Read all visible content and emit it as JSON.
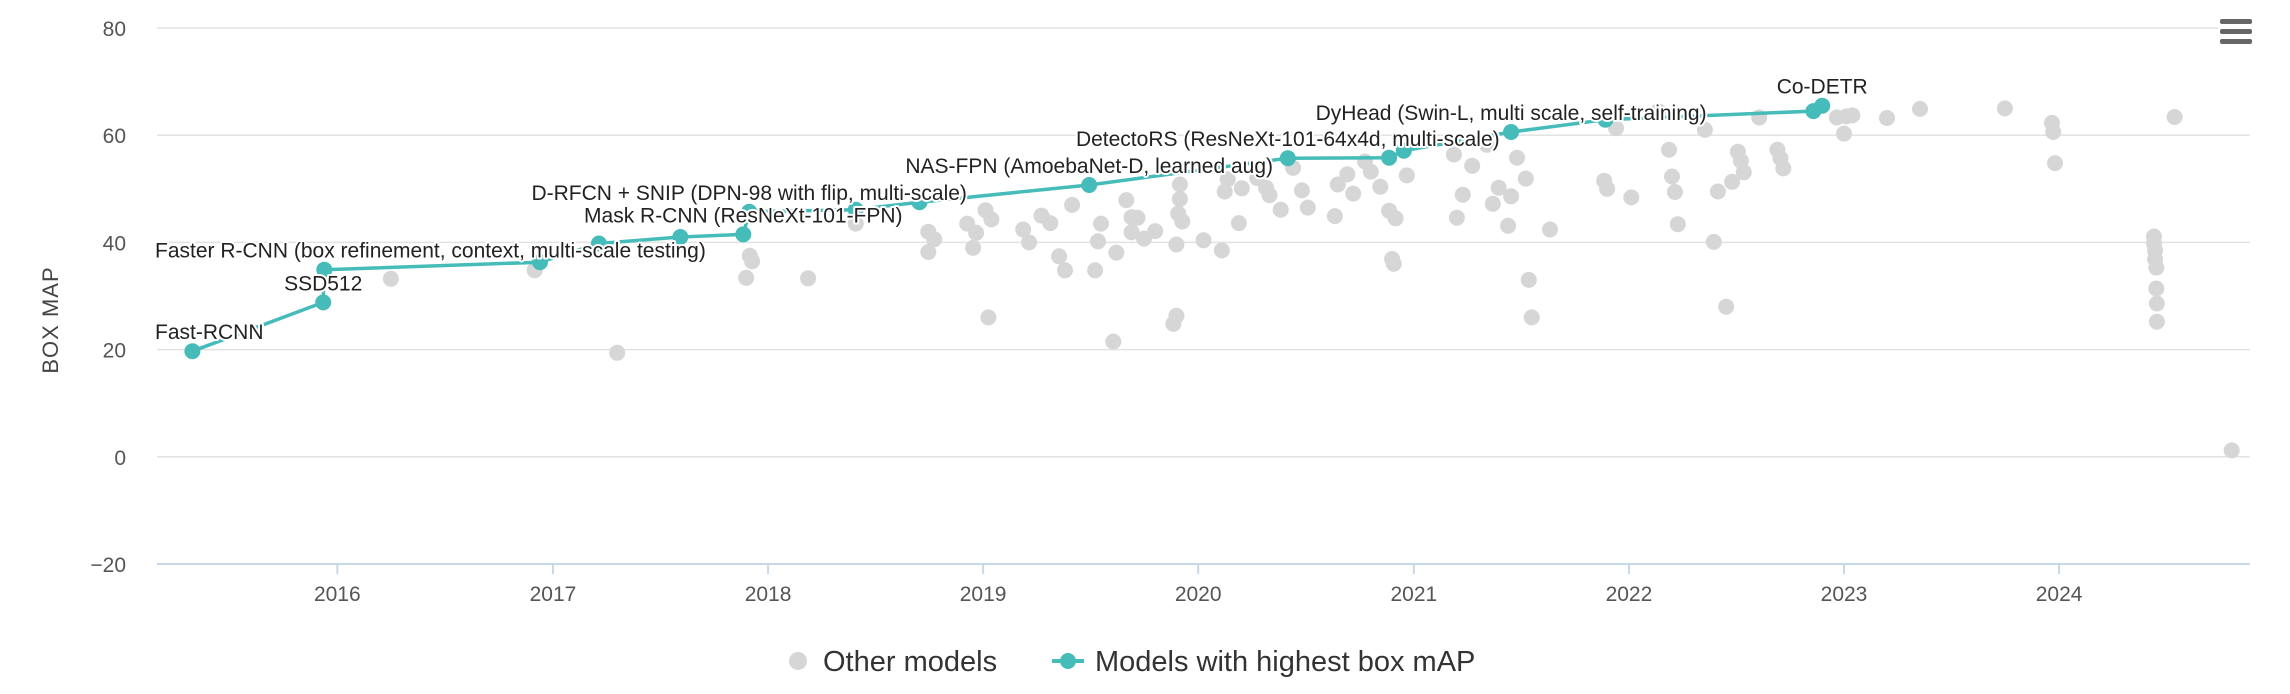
{
  "colors": {
    "accent": "#45bcb9",
    "other": "#d6d6d6",
    "grid": "#e2e2e2",
    "axis": "#c7d8e8"
  },
  "menu": {
    "icon": "hamburger-menu-icon"
  },
  "chart_data": {
    "type": "scatter",
    "title": "",
    "xlabel": "",
    "ylabel": "BOX MAP",
    "ylim": [
      -20,
      80
    ],
    "xlim": [
      "2015-03-01",
      "2024-11-20"
    ],
    "yticks": [
      "−20",
      "0",
      "20",
      "40",
      "60",
      "80"
    ],
    "ytick_values": [
      -20,
      0,
      20,
      40,
      60,
      80
    ],
    "xticks": [
      "2016",
      "2017",
      "2018",
      "2019",
      "2020",
      "2021",
      "2022",
      "2023",
      "2024"
    ],
    "xtick_values": [
      "2016-01-01",
      "2017-01-01",
      "2018-01-01",
      "2019-01-01",
      "2020-01-01",
      "2021-01-01",
      "2022-01-01",
      "2023-01-01",
      "2024-01-01"
    ],
    "grid": true,
    "legend": {
      "position": "bottom-center",
      "items": [
        "Other models",
        "Models with highest box mAP"
      ]
    },
    "series": [
      {
        "name": "Other models",
        "type": "scatter",
        "points": [
          [
            "2016-04-01",
            33.2
          ],
          [
            "2016-12-01",
            34.8
          ],
          [
            "2017-04-20",
            19.4
          ],
          [
            "2017-11-25",
            33.4
          ],
          [
            "2017-12-01",
            37.5
          ],
          [
            "2017-12-05",
            36.5
          ],
          [
            "2018-03-10",
            33.3
          ],
          [
            "2018-05-30",
            43.5
          ],
          [
            "2018-09-30",
            42
          ],
          [
            "2018-09-30",
            38.2
          ],
          [
            "2018-10-10",
            40.6
          ],
          [
            "2018-12-05",
            43.5
          ],
          [
            "2018-12-15",
            39
          ],
          [
            "2018-12-20",
            41.8
          ],
          [
            "2019-01-05",
            46
          ],
          [
            "2019-01-10",
            26
          ],
          [
            "2019-01-15",
            44.3
          ],
          [
            "2019-03-10",
            42.4
          ],
          [
            "2019-03-20",
            40
          ],
          [
            "2019-04-10",
            45
          ],
          [
            "2019-04-25",
            43.6
          ],
          [
            "2019-05-10",
            37.4
          ],
          [
            "2019-05-20",
            34.8
          ],
          [
            "2019-06-01",
            47
          ],
          [
            "2019-07-10",
            34.8
          ],
          [
            "2019-07-15",
            40.2
          ],
          [
            "2019-07-20",
            43.5
          ],
          [
            "2019-08-10",
            21.5
          ],
          [
            "2019-08-15",
            38.1
          ],
          [
            "2019-09-01",
            47.9
          ],
          [
            "2019-09-10",
            44.7
          ],
          [
            "2019-09-10",
            41.9
          ],
          [
            "2019-09-20",
            44.6
          ],
          [
            "2019-10-01",
            40.7
          ],
          [
            "2019-10-20",
            42.1
          ],
          [
            "2019-11-20",
            24.8
          ],
          [
            "2019-11-25",
            26.3
          ],
          [
            "2019-11-25",
            39.6
          ],
          [
            "2019-11-28",
            45.4
          ],
          [
            "2019-12-01",
            48.1
          ],
          [
            "2019-12-01",
            50.8
          ],
          [
            "2019-12-05",
            43.9
          ],
          [
            "2020-01-10",
            40.4
          ],
          [
            "2020-02-10",
            38.5
          ],
          [
            "2020-02-15",
            49.5
          ],
          [
            "2020-02-20",
            51.8
          ],
          [
            "2020-03-10",
            43.6
          ],
          [
            "2020-03-15",
            50.1
          ],
          [
            "2020-04-10",
            52
          ],
          [
            "2020-04-25",
            50.2
          ],
          [
            "2020-05-01",
            48.8
          ],
          [
            "2020-05-20",
            46.1
          ],
          [
            "2020-06-10",
            53.9
          ],
          [
            "2020-06-25",
            49.7
          ],
          [
            "2020-07-05",
            46.5
          ],
          [
            "2020-08-20",
            44.9
          ],
          [
            "2020-08-25",
            50.8
          ],
          [
            "2020-09-10",
            52.7
          ],
          [
            "2020-09-20",
            49.1
          ],
          [
            "2020-10-10",
            55.1
          ],
          [
            "2020-10-20",
            53.2
          ],
          [
            "2020-11-05",
            50.4
          ],
          [
            "2020-11-20",
            45.9
          ],
          [
            "2020-11-25",
            36.9
          ],
          [
            "2020-11-28",
            36
          ],
          [
            "2020-12-01",
            44.5
          ],
          [
            "2020-12-20",
            52.5
          ],
          [
            "2021-03-10",
            56.4
          ],
          [
            "2021-03-15",
            44.6
          ],
          [
            "2021-03-25",
            48.9
          ],
          [
            "2021-04-10",
            54.3
          ],
          [
            "2021-05-05",
            58.2
          ],
          [
            "2021-05-15",
            47.2
          ],
          [
            "2021-05-25",
            50.2
          ],
          [
            "2021-06-10",
            43.1
          ],
          [
            "2021-06-15",
            48.6
          ],
          [
            "2021-06-25",
            55.8
          ],
          [
            "2021-07-10",
            51.9
          ],
          [
            "2021-07-15",
            33
          ],
          [
            "2021-07-20",
            26
          ],
          [
            "2021-08-20",
            42.4
          ],
          [
            "2021-11-20",
            51.5
          ],
          [
            "2021-11-25",
            50
          ],
          [
            "2021-12-10",
            61.3
          ],
          [
            "2022-01-05",
            48.4
          ],
          [
            "2022-02-20",
            64.5
          ],
          [
            "2022-03-10",
            57.3
          ],
          [
            "2022-03-15",
            52.3
          ],
          [
            "2022-03-20",
            49.4
          ],
          [
            "2022-03-25",
            43.4
          ],
          [
            "2022-05-10",
            61
          ],
          [
            "2022-05-25",
            40.1
          ],
          [
            "2022-06-01",
            49.5
          ],
          [
            "2022-06-15",
            28
          ],
          [
            "2022-06-25",
            51.3
          ],
          [
            "2022-07-05",
            56.9
          ],
          [
            "2022-07-10",
            55.2
          ],
          [
            "2022-07-15",
            53.1
          ],
          [
            "2022-08-10",
            63.3
          ],
          [
            "2022-09-10",
            57.3
          ],
          [
            "2022-09-15",
            55.7
          ],
          [
            "2022-09-20",
            53.8
          ],
          [
            "2022-12-20",
            63.3
          ],
          [
            "2023-01-01",
            60.3
          ],
          [
            "2023-01-05",
            63.5
          ],
          [
            "2023-01-15",
            63.7
          ],
          [
            "2023-03-15",
            63.2
          ],
          [
            "2023-05-10",
            64.9
          ],
          [
            "2023-10-01",
            65
          ],
          [
            "2023-12-20",
            62.3
          ],
          [
            "2023-12-22",
            60.6
          ],
          [
            "2023-12-25",
            54.8
          ],
          [
            "2024-06-10",
            41.1
          ],
          [
            "2024-06-10",
            39.8
          ],
          [
            "2024-06-12",
            38.5
          ],
          [
            "2024-06-12",
            36.9
          ],
          [
            "2024-06-14",
            35.3
          ],
          [
            "2024-06-14",
            31.4
          ],
          [
            "2024-06-15",
            28.6
          ],
          [
            "2024-06-15",
            25.2
          ],
          [
            "2024-07-15",
            63.4
          ],
          [
            "2024-10-20",
            1.2
          ]
        ]
      },
      {
        "name": "Models with highest box mAP",
        "type": "line",
        "points": [
          {
            "x": "2015-04-30",
            "y": 19.7,
            "label": "Fast-RCNN"
          },
          {
            "x": "2015-12-08",
            "y": 28.8,
            "label": "SSD512"
          },
          {
            "x": "2015-12-10",
            "y": 34.9,
            "label": "Faster R-CNN (box refinement, context, multi-scale testing)"
          },
          {
            "x": "2016-12-10",
            "y": 36.3
          },
          {
            "x": "2017-03-20",
            "y": 39.8
          },
          {
            "x": "2017-08-05",
            "y": 41
          },
          {
            "x": "2017-11-20",
            "y": 41.5,
            "label": "Mask R-CNN (ResNeXt-101-FPN)"
          },
          {
            "x": "2017-11-30",
            "y": 45.7,
            "label": "D-RFCN + SNIP (DPN-98 with flip, multi-scale)"
          },
          {
            "x": "2018-05-30",
            "y": 46.1
          },
          {
            "x": "2018-09-15",
            "y": 47.5
          },
          {
            "x": "2019-06-30",
            "y": 50.7,
            "label": "NAS-FPN (AmoebaNet-D, learned aug)"
          },
          {
            "x": "2020-06-01",
            "y": 55.7,
            "label": "DetectoRS (ResNeXt-101-64x4d, multi-scale)"
          },
          {
            "x": "2020-11-20",
            "y": 55.8
          },
          {
            "x": "2020-12-15",
            "y": 57.1
          },
          {
            "x": "2021-06-15",
            "y": 60.6,
            "label": "DyHead (Swin-L, multi scale, self-training)"
          },
          {
            "x": "2021-11-22",
            "y": 62.9
          },
          {
            "x": "2022-11-10",
            "y": 64.5
          },
          {
            "x": "2022-11-25",
            "y": 65.5,
            "label": "Co-DETR"
          }
        ]
      }
    ]
  }
}
